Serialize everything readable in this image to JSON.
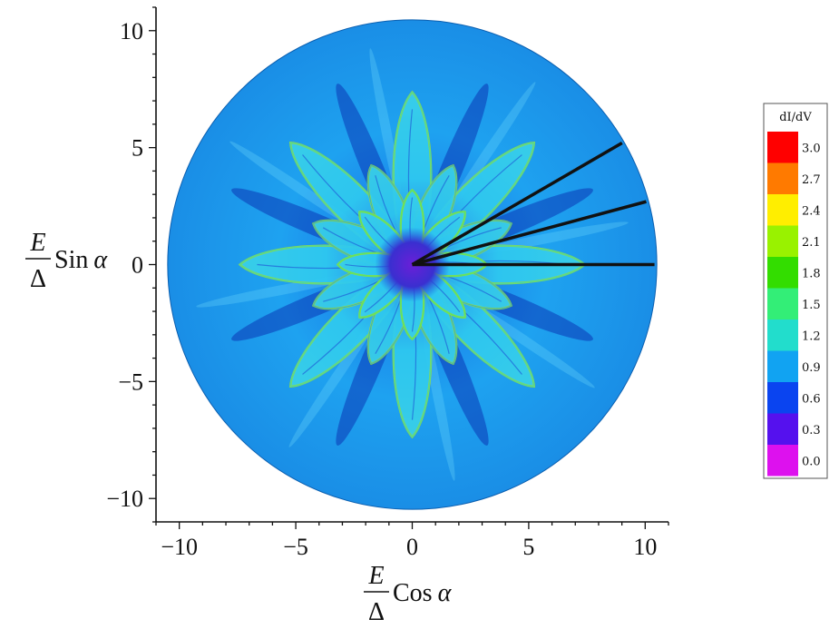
{
  "chart_data": {
    "type": "heatmap",
    "title": "",
    "projection": "polar",
    "xlim": [
      -11,
      11
    ],
    "ylim": [
      -11,
      11
    ],
    "disk_radius": 10.5,
    "xticks": [
      -10,
      -5,
      0,
      5,
      10
    ],
    "yticks": [
      -10,
      -5,
      0,
      5,
      10
    ],
    "xtick_labels": [
      "−10",
      "−5",
      "0",
      "5",
      "10"
    ],
    "ytick_labels": [
      "−10",
      "−5",
      "0",
      "5",
      "10"
    ],
    "xlabel": {
      "fraction_num": "E",
      "fraction_den": "Δ",
      "trig": "Cos",
      "var": "α"
    },
    "ylabel": {
      "fraction_num": "E",
      "fraction_den": "Δ",
      "trig": "Sin",
      "var": "α"
    },
    "colorbar": {
      "title": "dI/dV",
      "placement": "right",
      "entries": [
        {
          "value": 3.0,
          "label": "3.0",
          "color": "#ff0000"
        },
        {
          "value": 2.7,
          "label": "2.7",
          "color": "#ff7a00"
        },
        {
          "value": 2.4,
          "label": "2.4",
          "color": "#ffee00"
        },
        {
          "value": 2.1,
          "label": "2.1",
          "color": "#99f200"
        },
        {
          "value": 1.8,
          "label": "1.8",
          "color": "#33dd00"
        },
        {
          "value": 1.5,
          "label": "1.5",
          "color": "#33ee77"
        },
        {
          "value": 1.2,
          "label": "1.2",
          "color": "#22ddcc"
        },
        {
          "value": 0.9,
          "label": "0.9",
          "color": "#11a3f2"
        },
        {
          "value": 0.6,
          "label": "0.6",
          "color": "#0a44f0"
        },
        {
          "value": 0.3,
          "label": "0.3",
          "color": "#5511ee"
        },
        {
          "value": 0.0,
          "label": "0.0",
          "color": "#dd11ee"
        }
      ]
    },
    "background_value": 0.9,
    "petal_groups": [
      {
        "count": 8,
        "start_angle_deg": 0,
        "length": 7.4,
        "width": 0.9,
        "value": 1.2
      },
      {
        "count": 8,
        "start_angle_deg": 22.5,
        "length": 4.6,
        "width": 0.75,
        "value": 1.0
      },
      {
        "count": 8,
        "start_angle_deg": 0,
        "length": 3.2,
        "width": 0.55,
        "value": 1.4
      }
    ],
    "radial_lines": [
      {
        "angle_deg": 0,
        "r": 10.4
      },
      {
        "angle_deg": 15,
        "r": 10.4
      },
      {
        "angle_deg": 30,
        "r": 10.4
      }
    ]
  }
}
